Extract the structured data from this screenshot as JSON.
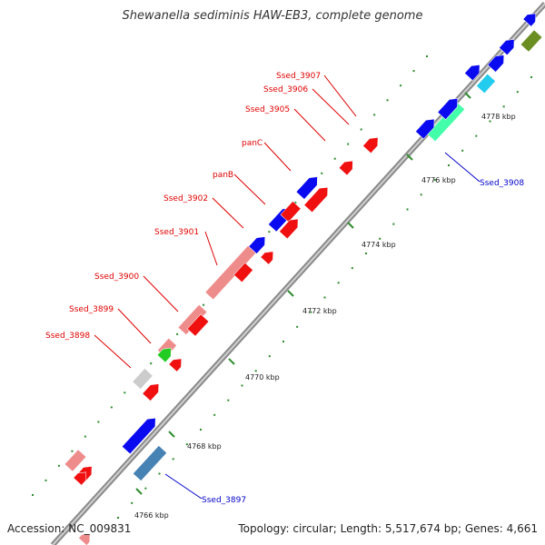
{
  "title": "Shewanella sediminis HAW-EB3, complete genome",
  "accession": "Accession: NC_009831",
  "topology": "Topology: circular; Length: 5,517,674 bp; Genes: 4,661",
  "colors": {
    "backbone": "#8a8a8a",
    "tick": "#2e8b2e",
    "label_red": "#e00000",
    "label_blue": "#0000cc",
    "blue": "#0a0af0",
    "red": "#f01010",
    "pink": "#ee8c8c",
    "gray": "#cccccc",
    "green": "#22cc22",
    "cyan": "#22ccee",
    "mint": "#44ffaa",
    "olive": "#6b8e23",
    "steel": "#4682b4"
  },
  "kbp_labels": [
    "4766 kbp",
    "4768 kbp",
    "4770 kbp",
    "4772 kbp",
    "4774 kbp",
    "4776 kbp",
    "4778 kbp"
  ],
  "gene_labels": [
    {
      "text": "Ssed_3907",
      "color": "red"
    },
    {
      "text": "Ssed_3906",
      "color": "red"
    },
    {
      "text": "Ssed_3905",
      "color": "red"
    },
    {
      "text": "panC",
      "color": "red"
    },
    {
      "text": "panB",
      "color": "red"
    },
    {
      "text": "Ssed_3902",
      "color": "red"
    },
    {
      "text": "Ssed_3901",
      "color": "red"
    },
    {
      "text": "Ssed_3900",
      "color": "red"
    },
    {
      "text": "Ssed_3899",
      "color": "red"
    },
    {
      "text": "Ssed_3898",
      "color": "red"
    },
    {
      "text": "Ssed_3908",
      "color": "blue"
    },
    {
      "text": "Ssed_3897",
      "color": "blue"
    }
  ],
  "genes": [
    {
      "color": "blue",
      "arrow": true
    },
    {
      "color": "pink",
      "arrow": false
    },
    {
      "color": "blue",
      "arrow": true
    },
    {
      "color": "blue",
      "arrow": true
    },
    {
      "color": "pink",
      "arrow": false
    },
    {
      "color": "pink",
      "arrow": false
    },
    {
      "color": "pink",
      "arrow": false
    },
    {
      "color": "green",
      "arrow": true
    },
    {
      "color": "gray",
      "arrow": false
    },
    {
      "color": "blue",
      "arrow": true
    },
    {
      "color": "red",
      "arrow": false
    },
    {
      "color": "red",
      "arrow": true
    },
    {
      "color": "red",
      "arrow": false
    },
    {
      "color": "red",
      "arrow": true
    },
    {
      "color": "red",
      "arrow": true
    },
    {
      "color": "red",
      "arrow": false
    },
    {
      "color": "red",
      "arrow": true
    },
    {
      "color": "red",
      "arrow": true
    },
    {
      "color": "red",
      "arrow": true
    },
    {
      "color": "red",
      "arrow": true
    },
    {
      "color": "red",
      "arrow": true
    },
    {
      "color": "steel",
      "arrow": false
    },
    {
      "color": "red",
      "arrow": true
    },
    {
      "color": "pink",
      "arrow": true
    },
    {
      "color": "mint",
      "arrow": false
    },
    {
      "color": "blue",
      "arrow": true
    },
    {
      "color": "blue",
      "arrow": true
    },
    {
      "color": "blue",
      "arrow": true
    },
    {
      "color": "cyan",
      "arrow": false
    },
    {
      "color": "blue",
      "arrow": true
    },
    {
      "color": "blue",
      "arrow": true
    },
    {
      "color": "blue",
      "arrow": true
    },
    {
      "color": "olive",
      "arrow": false
    }
  ]
}
